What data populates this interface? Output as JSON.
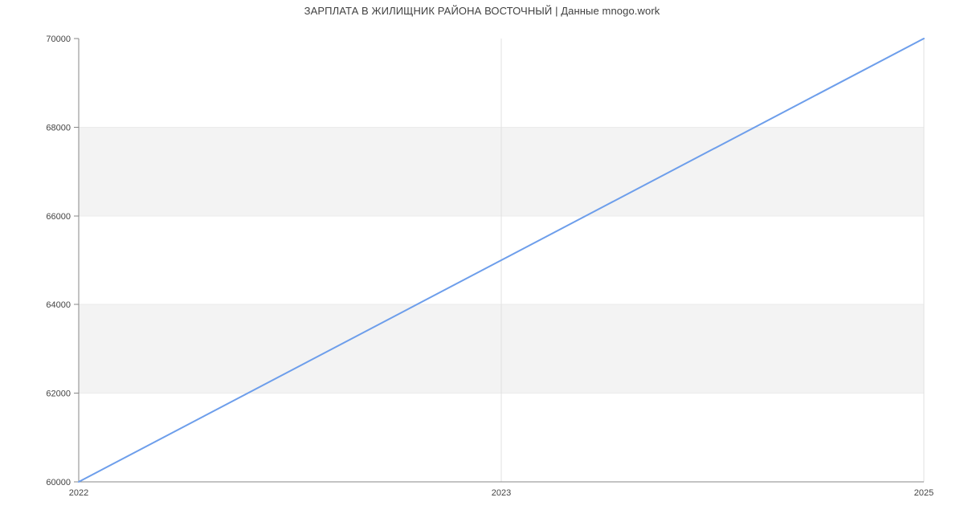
{
  "chart_data": {
    "type": "line",
    "title": "ЗАРПЛАТА В ЖИЛИЩНИК РАЙОНА ВОСТОЧНЫЙ | Данные mnogo.work",
    "categories": [
      "2022",
      "2023",
      "2025"
    ],
    "values": [
      60000,
      65000,
      70000
    ],
    "xlabel": "",
    "ylabel": "",
    "ylim": [
      60000,
      70000
    ],
    "yticks": [
      60000,
      62000,
      64000,
      66000,
      68000,
      70000
    ],
    "ytick_labels": [
      "60000",
      "62000",
      "64000",
      "66000",
      "68000",
      "70000"
    ],
    "grid_bands": [
      [
        62000,
        64000
      ],
      [
        66000,
        68000
      ]
    ],
    "vertical_gridline_categories": [
      "2023",
      "2025"
    ],
    "legend": "none",
    "colors": {
      "line": "#6d9eeb",
      "band_fill": "#f3f3f3",
      "band_edge": "#ebebeb",
      "gridline": "#e2e2e2",
      "axis": "#878787",
      "tick_text": "#444444",
      "title_text": "#404040",
      "background": "#ffffff"
    }
  }
}
